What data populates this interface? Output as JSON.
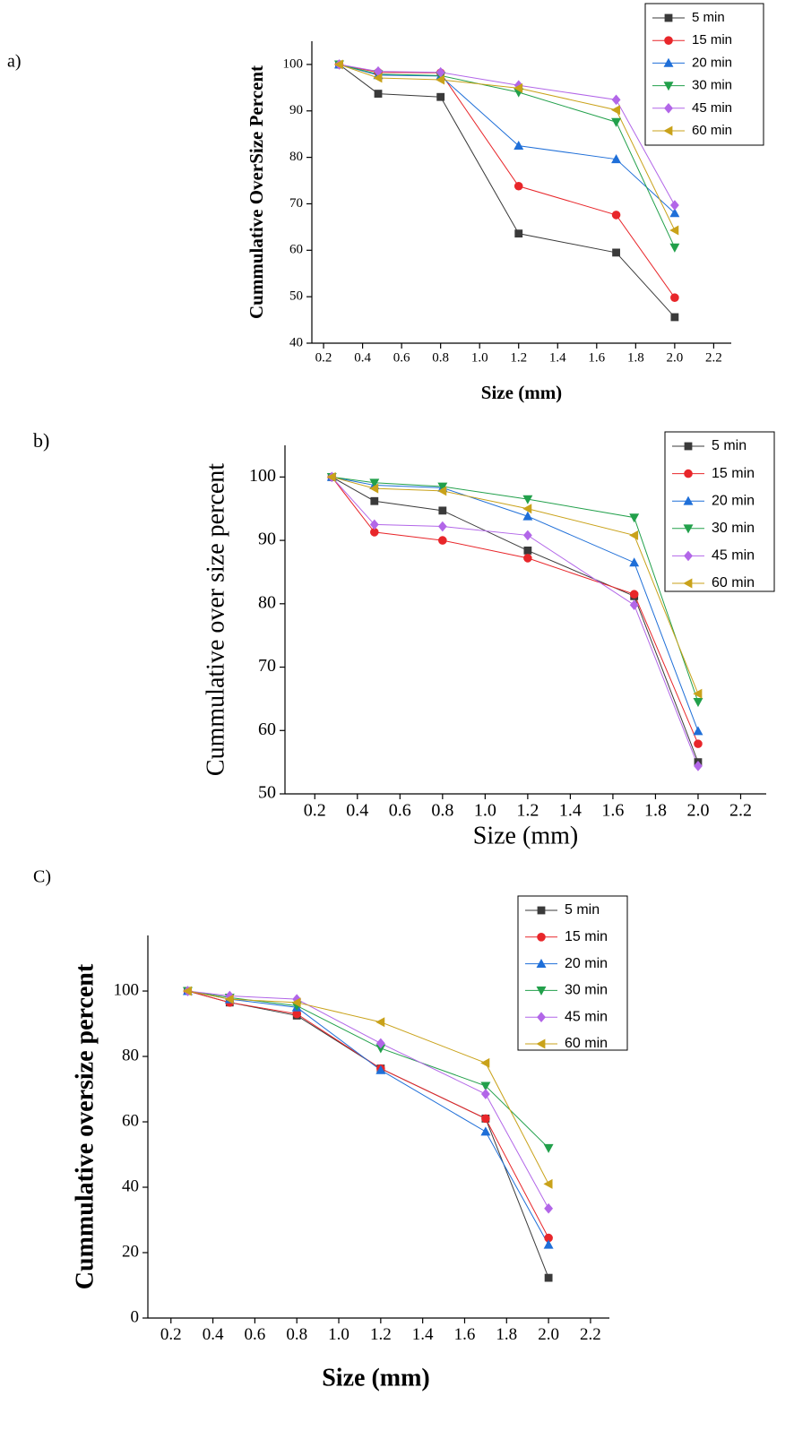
{
  "chart_data": [
    {
      "type": "line",
      "panel_label": "a)",
      "x_label": "Size (mm)",
      "y_label": "Cummulative OverSize Percent",
      "x": [
        0.28,
        0.48,
        0.8,
        1.2,
        1.7,
        2.0
      ],
      "xlim": [
        0.14,
        2.29
      ],
      "ylim": [
        40,
        105
      ],
      "xticks": [
        0.2,
        0.4,
        0.6,
        0.8,
        {
          "value": 1,
          "label": "1.0"
        },
        1.2,
        1.4,
        1.6,
        1.8,
        {
          "value": 2,
          "label": "2.0"
        },
        2.2
      ],
      "yticks": [
        40,
        50,
        60,
        70,
        80,
        90,
        100
      ],
      "legend": "top-right",
      "series": [
        {
          "name": "5 min",
          "color": "#3a3a3a",
          "marker": "square",
          "values": [
            100,
            93.7,
            93,
            63.6,
            59.5,
            45.6
          ]
        },
        {
          "name": "15 min",
          "color": "#e8262a",
          "marker": "circle",
          "values": [
            100,
            98.3,
            98.2,
            73.8,
            67.6,
            49.8
          ]
        },
        {
          "name": "20 min",
          "color": "#1f6fd8",
          "marker": "triangle-up",
          "values": [
            100,
            97.7,
            97.5,
            82.5,
            79.6,
            68
          ]
        },
        {
          "name": "30 min",
          "color": "#22a04b",
          "marker": "triangle-down",
          "values": [
            100,
            97.9,
            97.6,
            94,
            87.6,
            60.6
          ]
        },
        {
          "name": "45 min",
          "color": "#b266e8",
          "marker": "diamond",
          "values": [
            100,
            98.5,
            98.3,
            95.5,
            92.4,
            69.7
          ]
        },
        {
          "name": "60 min",
          "color": "#c9a21a",
          "marker": "triangle-left",
          "values": [
            100,
            97.1,
            96.7,
            94.9,
            90.2,
            64.3
          ]
        }
      ]
    },
    {
      "type": "line",
      "panel_label": "b)",
      "x_label": "Size (mm)",
      "y_label": "Cummulative over size percent",
      "x": [
        0.28,
        0.48,
        0.8,
        1.2,
        1.7,
        2.0
      ],
      "xlim": [
        0.06,
        2.32
      ],
      "ylim": [
        50,
        105
      ],
      "xticks": [
        0.2,
        0.4,
        0.6,
        0.8,
        {
          "value": 1,
          "label": "1.0"
        },
        1.2,
        1.4,
        1.6,
        1.8,
        {
          "value": 2,
          "label": "2.0"
        },
        2.2
      ],
      "yticks": [
        50,
        60,
        70,
        80,
        90,
        100
      ],
      "legend": "top-right",
      "series": [
        {
          "name": "5 min",
          "color": "#3a3a3a",
          "marker": "square",
          "values": [
            100,
            96.2,
            94.7,
            88.4,
            81.2,
            55
          ]
        },
        {
          "name": "15 min",
          "color": "#e8262a",
          "marker": "circle",
          "values": [
            100,
            91.3,
            90,
            87.2,
            81.5,
            57.9
          ]
        },
        {
          "name": "20 min",
          "color": "#1f6fd8",
          "marker": "triangle-up",
          "values": [
            100,
            98.7,
            98.3,
            93.8,
            86.5,
            59.9
          ]
        },
        {
          "name": "30 min",
          "color": "#22a04b",
          "marker": "triangle-down",
          "values": [
            100,
            99.1,
            98.5,
            96.5,
            93.6,
            64.5
          ]
        },
        {
          "name": "45 min",
          "color": "#b266e8",
          "marker": "diamond",
          "values": [
            100,
            92.5,
            92.2,
            90.8,
            79.8,
            54.4
          ]
        },
        {
          "name": "60 min",
          "color": "#c9a21a",
          "marker": "triangle-left",
          "values": [
            100,
            98.2,
            97.8,
            95,
            90.8,
            65.8
          ]
        }
      ]
    },
    {
      "type": "line",
      "panel_label": "C)",
      "x_label": "Size (mm)",
      "y_label": "Cummulative oversize percent",
      "x": [
        0.28,
        0.48,
        0.8,
        1.2,
        1.7,
        2.0
      ],
      "xlim": [
        0.09,
        2.29
      ],
      "ylim": [
        0,
        117
      ],
      "xticks": [
        0.2,
        0.4,
        0.6,
        0.8,
        {
          "value": 1,
          "label": "1.0"
        },
        1.2,
        1.4,
        1.6,
        1.8,
        {
          "value": 2,
          "label": "2.0"
        },
        2.2
      ],
      "yticks": [
        0,
        20,
        40,
        60,
        80,
        100
      ],
      "legend": "top-right",
      "series": [
        {
          "name": "5 min",
          "color": "#3a3a3a",
          "marker": "square",
          "values": [
            100,
            96.5,
            92.5,
            76.3,
            61,
            12.3
          ]
        },
        {
          "name": "15 min",
          "color": "#e8262a",
          "marker": "circle",
          "values": [
            100,
            96.5,
            93,
            76.3,
            61,
            24.5
          ]
        },
        {
          "name": "20 min",
          "color": "#1f6fd8",
          "marker": "triangle-up",
          "values": [
            100,
            97.5,
            95,
            75.8,
            57,
            22.4
          ]
        },
        {
          "name": "30 min",
          "color": "#22a04b",
          "marker": "triangle-down",
          "values": [
            100,
            98,
            95.5,
            82.5,
            71,
            52
          ]
        },
        {
          "name": "45 min",
          "color": "#b266e8",
          "marker": "diamond",
          "values": [
            100,
            98.5,
            97.5,
            84,
            68.5,
            33.5
          ]
        },
        {
          "name": "60 min",
          "color": "#c9a21a",
          "marker": "triangle-left",
          "values": [
            100,
            97.5,
            96.5,
            90.5,
            78,
            41
          ]
        }
      ]
    }
  ]
}
